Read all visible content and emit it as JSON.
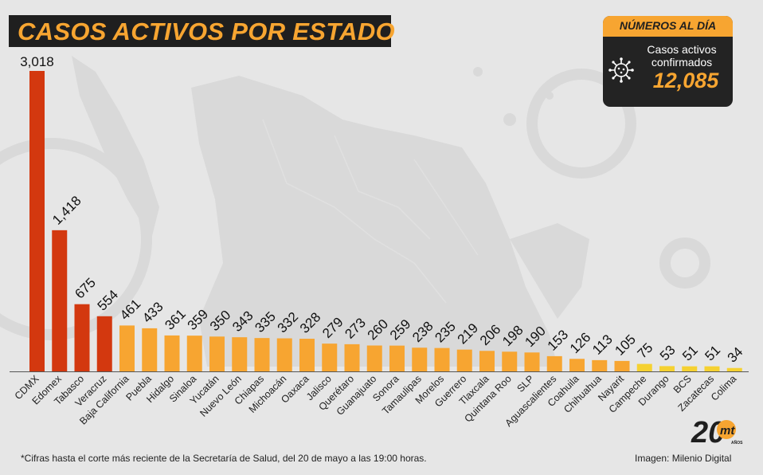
{
  "title": "CASOS ACTIVOS POR ESTADO",
  "summary": {
    "header": "NÚMEROS AL DÍA",
    "label_line1": "Casos activos",
    "label_line2": "confirmados",
    "value": "12,085",
    "icon": "virus-icon"
  },
  "footnote": "*Cifras hasta el corte más reciente de la Secretaría de Salud, del 20 de mayo a las 19:00 horas.",
  "source": "Imagen: Milenio Digital",
  "logo": {
    "number": "20",
    "letters": "mt",
    "small": "AÑOS"
  },
  "colors": {
    "background": "#e6e6e6",
    "accent": "#f7a531",
    "high": "#d3380f",
    "mid": "#f7a531",
    "low": "#f5d131",
    "dark": "#1f1f1f"
  },
  "chart_data": {
    "type": "bar",
    "title": "CASOS ACTIVOS POR ESTADO",
    "xlabel": "",
    "ylabel": "",
    "ylim": [
      0,
      3018
    ],
    "grid": false,
    "categories": [
      "CDMX",
      "Edomex",
      "Tabasco",
      "Veracruz",
      "Baja California",
      "Puebla",
      "Hidalgo",
      "Sinaloa",
      "Yucatán",
      "Nuevo León",
      "Chiapas",
      "Michoacán",
      "Oaxaca",
      "Jalisco",
      "Querétaro",
      "Guanajuato",
      "Sonora",
      "Tamaulipas",
      "Morelos",
      "Guerrero",
      "Tlaxcala",
      "Quintana Roo",
      "SLP",
      "Aguascalientes",
      "Coahuila",
      "Chihuahua",
      "Nayarit",
      "Campeche",
      "Durango",
      "BCS",
      "Zacatecas",
      "Colima"
    ],
    "values": [
      3018,
      1418,
      675,
      554,
      461,
      433,
      361,
      359,
      350,
      343,
      335,
      332,
      328,
      279,
      273,
      260,
      259,
      238,
      235,
      219,
      206,
      198,
      190,
      153,
      126,
      113,
      105,
      75,
      53,
      51,
      51,
      34
    ],
    "value_labels": [
      "3,018",
      "1,418",
      "675",
      "554",
      "461",
      "433",
      "361",
      "359",
      "350",
      "343",
      "335",
      "332",
      "328",
      "279",
      "273",
      "260",
      "259",
      "238",
      "235",
      "219",
      "206",
      "198",
      "190",
      "153",
      "126",
      "113",
      "105",
      "75",
      "53",
      "51",
      "51",
      "34"
    ],
    "color_tiers": [
      "high",
      "high",
      "high",
      "high",
      "mid",
      "mid",
      "mid",
      "mid",
      "mid",
      "mid",
      "mid",
      "mid",
      "mid",
      "mid",
      "mid",
      "mid",
      "mid",
      "mid",
      "mid",
      "mid",
      "mid",
      "mid",
      "mid",
      "mid",
      "mid",
      "mid",
      "mid",
      "low",
      "low",
      "low",
      "low",
      "low"
    ]
  }
}
